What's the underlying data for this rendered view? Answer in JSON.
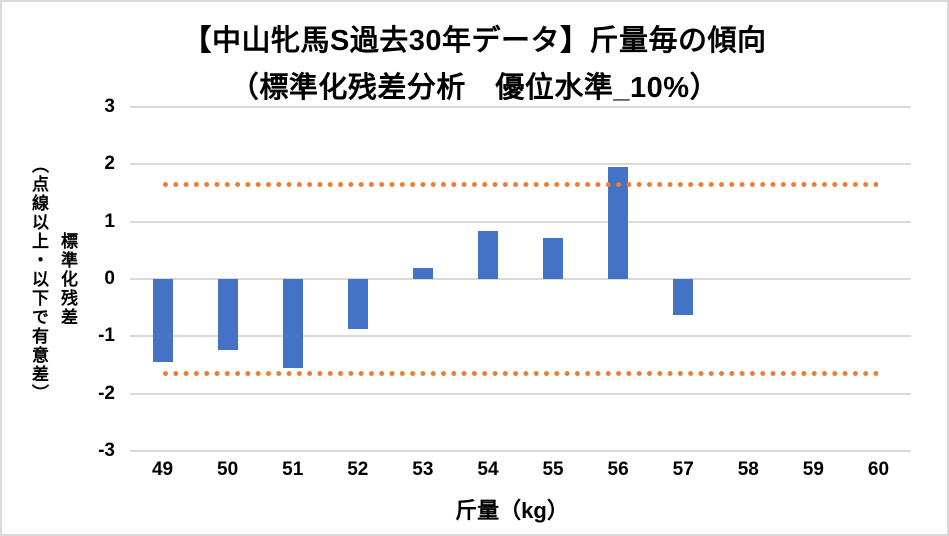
{
  "frame": {
    "background": "#FFFFFF",
    "border_color": "#D9D9D9"
  },
  "chart_data": {
    "type": "bar",
    "title": "【中山牝馬S過去30年データ】斤量毎の傾向",
    "subtitle": "（標準化残差分析　優位水準_10%）",
    "xlabel": "斤量（kg）",
    "ylabel": "標準化残差（点線以上・以下で有意差）",
    "ylabel_main": "標準化残差",
    "ylabel_note": "（点線以上・以下で有意差）",
    "categories": [
      "49",
      "50",
      "51",
      "52",
      "53",
      "54",
      "55",
      "56",
      "57",
      "58",
      "59",
      "60"
    ],
    "values": [
      -1.45,
      -1.23,
      -1.55,
      -0.87,
      0.19,
      0.83,
      0.71,
      1.96,
      -0.62,
      0,
      0,
      0
    ],
    "ylim": [
      -3,
      3
    ],
    "yticks": [
      3,
      2,
      1,
      0,
      -1,
      -2,
      -3
    ],
    "threshold_upper": 1.645,
    "threshold_lower": -1.645,
    "significance_note": "dotted lines mark the 10% significance level",
    "bar_color": "#4472C4",
    "threshold_color": "#ED7D31",
    "gridline_color": "#D9D9D9",
    "grid": true,
    "legend_position": "none"
  }
}
